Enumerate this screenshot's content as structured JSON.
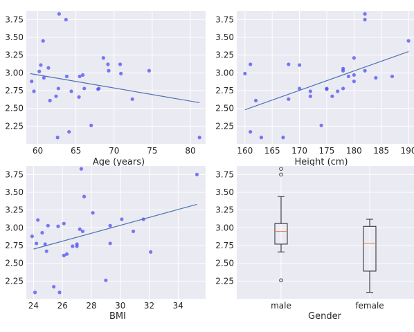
{
  "figure": {
    "background": "#ffffff",
    "axes_facecolor": "#eaeaf2",
    "point_color": "#4f4ff2",
    "line_color": "#4c72b0",
    "box_color": "#262626",
    "median_color": "#e8825c"
  },
  "chart_data": [
    {
      "type": "scatter",
      "xlabel": "Age (years)",
      "ylabel": "",
      "xlim": [
        58.5,
        82.0
      ],
      "ylim": [
        2.0,
        3.87
      ],
      "xticks": [
        60,
        65,
        70,
        75,
        80
      ],
      "yticks": [
        2.25,
        2.5,
        2.75,
        3.0,
        3.25,
        3.5,
        3.75
      ],
      "points": [
        {
          "x": 59.2,
          "y": 2.88
        },
        {
          "x": 59.5,
          "y": 2.74
        },
        {
          "x": 60.2,
          "y": 3.02
        },
        {
          "x": 60.4,
          "y": 3.11
        },
        {
          "x": 60.7,
          "y": 3.45
        },
        {
          "x": 60.8,
          "y": 2.93
        },
        {
          "x": 61.4,
          "y": 3.07
        },
        {
          "x": 61.6,
          "y": 2.61
        },
        {
          "x": 62.4,
          "y": 2.67
        },
        {
          "x": 62.6,
          "y": 2.09
        },
        {
          "x": 62.7,
          "y": 2.78
        },
        {
          "x": 62.8,
          "y": 3.83
        },
        {
          "x": 63.7,
          "y": 3.75
        },
        {
          "x": 63.8,
          "y": 2.95
        },
        {
          "x": 64.1,
          "y": 2.17
        },
        {
          "x": 64.4,
          "y": 2.74
        },
        {
          "x": 65.4,
          "y": 2.66
        },
        {
          "x": 65.5,
          "y": 2.95
        },
        {
          "x": 65.9,
          "y": 2.97
        },
        {
          "x": 66.1,
          "y": 2.78
        },
        {
          "x": 67.0,
          "y": 2.26
        },
        {
          "x": 67.9,
          "y": 2.77
        },
        {
          "x": 68.0,
          "y": 2.78
        },
        {
          "x": 68.6,
          "y": 3.21
        },
        {
          "x": 69.2,
          "y": 3.12
        },
        {
          "x": 69.3,
          "y": 3.03
        },
        {
          "x": 70.8,
          "y": 3.12
        },
        {
          "x": 70.9,
          "y": 2.99
        },
        {
          "x": 72.4,
          "y": 2.63
        },
        {
          "x": 74.6,
          "y": 3.03
        },
        {
          "x": 81.2,
          "y": 2.09
        }
      ],
      "fit_line": {
        "x": [
          59.0,
          81.2
        ],
        "y": [
          2.99,
          2.58
        ]
      }
    },
    {
      "type": "scatter",
      "xlabel": "Height (cm)",
      "ylabel": "",
      "xlim": [
        158.5,
        191.0
      ],
      "ylim": [
        2.0,
        3.87
      ],
      "xticks": [
        160,
        165,
        170,
        175,
        180,
        185,
        190
      ],
      "yticks": [
        2.25,
        2.5,
        2.75,
        3.0,
        3.25,
        3.5,
        3.75
      ],
      "points": [
        {
          "x": 160.0,
          "y": 2.99
        },
        {
          "x": 161.0,
          "y": 3.12
        },
        {
          "x": 161.0,
          "y": 2.17
        },
        {
          "x": 162.0,
          "y": 2.61
        },
        {
          "x": 163.0,
          "y": 2.09
        },
        {
          "x": 167.0,
          "y": 2.09
        },
        {
          "x": 168.0,
          "y": 3.12
        },
        {
          "x": 168.0,
          "y": 2.63
        },
        {
          "x": 170.0,
          "y": 3.11
        },
        {
          "x": 170.0,
          "y": 2.78
        },
        {
          "x": 172.0,
          "y": 2.74
        },
        {
          "x": 172.0,
          "y": 2.67
        },
        {
          "x": 174.0,
          "y": 2.26
        },
        {
          "x": 175.0,
          "y": 2.78
        },
        {
          "x": 175.0,
          "y": 2.77
        },
        {
          "x": 176.0,
          "y": 2.67
        },
        {
          "x": 177.0,
          "y": 2.74
        },
        {
          "x": 178.0,
          "y": 3.06
        },
        {
          "x": 178.0,
          "y": 3.03
        },
        {
          "x": 178.0,
          "y": 2.78
        },
        {
          "x": 179.0,
          "y": 2.95
        },
        {
          "x": 180.0,
          "y": 3.21
        },
        {
          "x": 180.0,
          "y": 2.97
        },
        {
          "x": 180.0,
          "y": 2.88
        },
        {
          "x": 182.0,
          "y": 3.83
        },
        {
          "x": 182.0,
          "y": 3.75
        },
        {
          "x": 182.0,
          "y": 3.03
        },
        {
          "x": 184.0,
          "y": 2.93
        },
        {
          "x": 187.0,
          "y": 2.95
        },
        {
          "x": 190.0,
          "y": 3.45
        }
      ],
      "fit_line": {
        "x": [
          160.0,
          190.0
        ],
        "y": [
          2.48,
          3.3
        ]
      }
    },
    {
      "type": "scatter",
      "xlabel": "BMI",
      "ylabel": "",
      "xlim": [
        23.5,
        35.9
      ],
      "ylim": [
        2.0,
        3.87
      ],
      "xticks": [
        24,
        26,
        28,
        30,
        32,
        34
      ],
      "yticks": [
        2.25,
        2.5,
        2.75,
        3.0,
        3.25,
        3.5,
        3.75
      ],
      "points": [
        {
          "x": 23.9,
          "y": 2.88
        },
        {
          "x": 24.1,
          "y": 2.09
        },
        {
          "x": 24.2,
          "y": 2.78
        },
        {
          "x": 24.3,
          "y": 3.11
        },
        {
          "x": 24.6,
          "y": 2.93
        },
        {
          "x": 24.8,
          "y": 2.77
        },
        {
          "x": 24.9,
          "y": 2.67
        },
        {
          "x": 25.0,
          "y": 3.03
        },
        {
          "x": 25.4,
          "y": 2.17
        },
        {
          "x": 25.7,
          "y": 3.02
        },
        {
          "x": 25.8,
          "y": 2.09
        },
        {
          "x": 26.1,
          "y": 3.06
        },
        {
          "x": 26.1,
          "y": 2.61
        },
        {
          "x": 26.3,
          "y": 2.63
        },
        {
          "x": 26.7,
          "y": 2.74
        },
        {
          "x": 27.0,
          "y": 2.77
        },
        {
          "x": 27.0,
          "y": 2.74
        },
        {
          "x": 27.2,
          "y": 2.98
        },
        {
          "x": 27.3,
          "y": 3.83
        },
        {
          "x": 27.4,
          "y": 2.95
        },
        {
          "x": 27.5,
          "y": 3.44
        },
        {
          "x": 28.1,
          "y": 3.21
        },
        {
          "x": 29.0,
          "y": 2.26
        },
        {
          "x": 29.3,
          "y": 3.03
        },
        {
          "x": 29.3,
          "y": 2.78
        },
        {
          "x": 30.1,
          "y": 3.12
        },
        {
          "x": 30.9,
          "y": 2.95
        },
        {
          "x": 31.6,
          "y": 3.12
        },
        {
          "x": 32.1,
          "y": 2.66
        },
        {
          "x": 35.3,
          "y": 3.75
        }
      ],
      "fit_line": {
        "x": [
          24.0,
          35.3
        ],
        "y": [
          2.7,
          3.33
        ]
      }
    },
    {
      "type": "box",
      "xlabel": "Gender",
      "ylabel": "",
      "ylim": [
        2.0,
        3.87
      ],
      "yticks": [
        2.25,
        2.5,
        2.75,
        3.0,
        3.25,
        3.5,
        3.75
      ],
      "categories": [
        "male",
        "female"
      ],
      "boxes": [
        {
          "category": "male",
          "whisker_low": 2.66,
          "q1": 2.77,
          "median": 2.95,
          "q3": 3.06,
          "whisker_high": 3.44,
          "outliers": [
            2.26,
            3.75,
            3.83
          ]
        },
        {
          "category": "female",
          "whisker_low": 2.09,
          "q1": 2.39,
          "median": 2.78,
          "q3": 3.02,
          "whisker_high": 3.12,
          "outliers": []
        }
      ]
    }
  ]
}
